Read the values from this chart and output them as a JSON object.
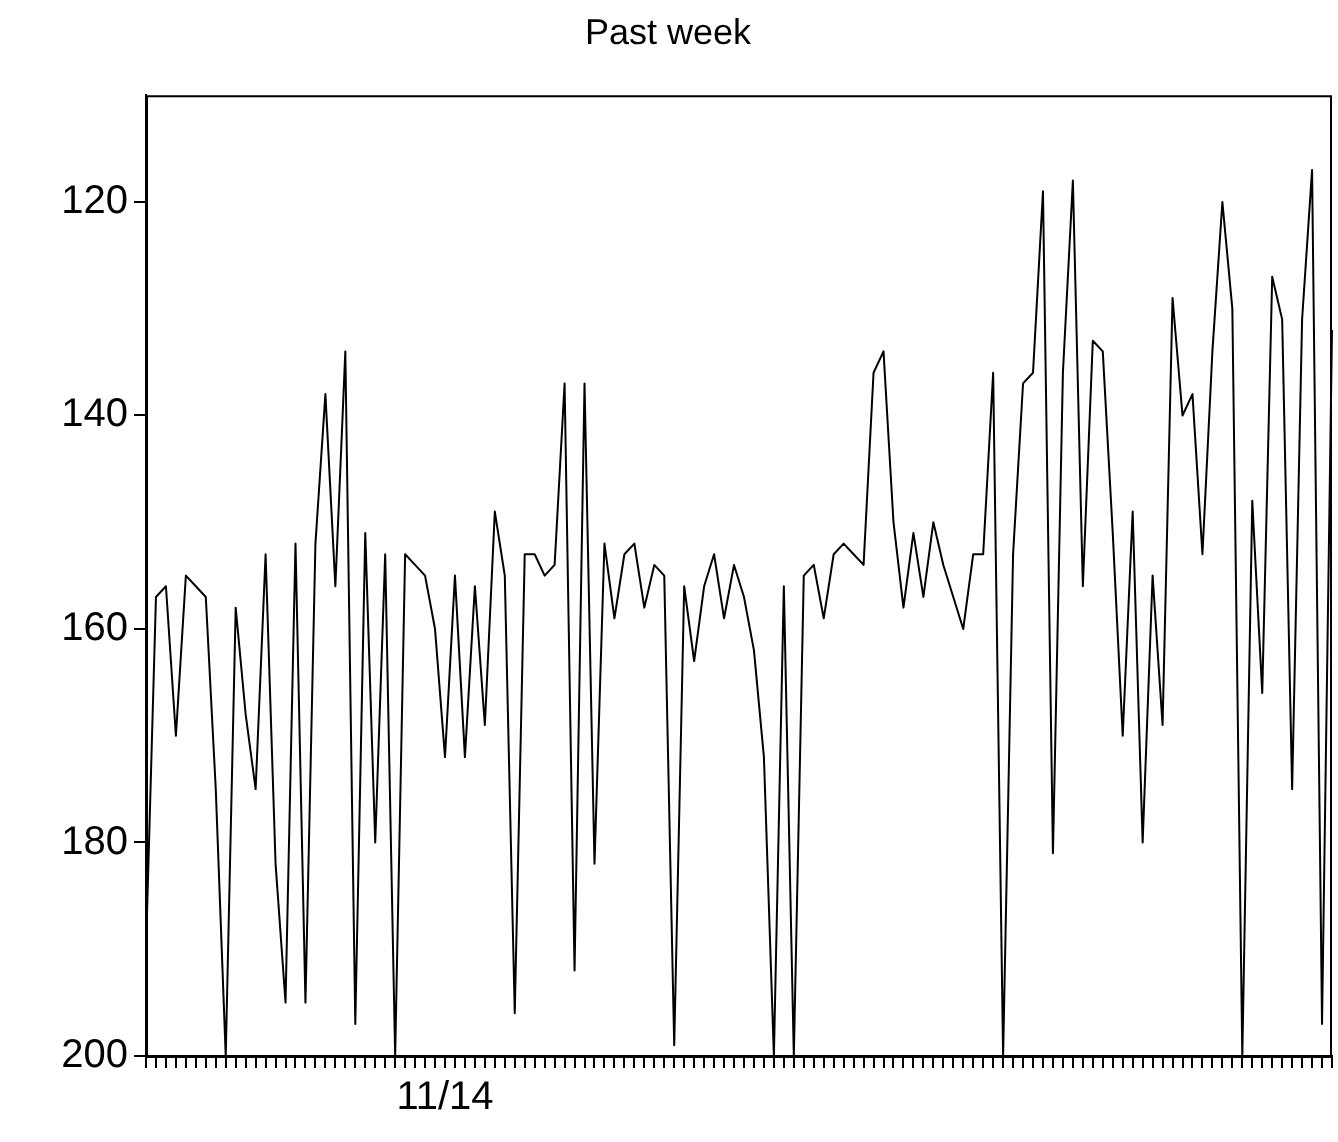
{
  "chart_data": {
    "type": "line",
    "title": "Past week",
    "categories": [
      null,
      null,
      null,
      null,
      null,
      null,
      null,
      null,
      null,
      null,
      null,
      null,
      null,
      null,
      null,
      null,
      null,
      null,
      null,
      null,
      null,
      null,
      null,
      null,
      null,
      null,
      null,
      null,
      null,
      null,
      "11/14",
      null,
      null,
      null,
      null,
      null,
      null,
      null,
      null,
      null,
      null,
      null,
      null,
      null,
      null,
      null,
      null,
      null,
      null,
      null,
      null,
      null,
      null,
      null,
      null,
      null,
      null,
      null,
      null,
      null,
      null,
      null,
      null,
      null,
      null,
      null,
      null,
      null,
      null,
      null,
      null,
      null,
      null,
      null,
      null,
      null,
      null,
      null,
      null,
      null,
      null,
      null,
      null,
      null,
      null,
      null,
      null,
      null,
      null,
      null,
      null,
      null,
      null,
      null,
      null,
      null,
      null,
      null,
      null,
      null,
      null,
      null,
      null,
      null,
      null,
      null,
      null,
      null,
      null,
      null,
      null,
      null,
      null,
      null,
      null,
      null,
      null,
      null,
      null,
      null
    ],
    "values": [
      190,
      157,
      156,
      170,
      155,
      156,
      157,
      175,
      200,
      158,
      168,
      175,
      153,
      182,
      195,
      152,
      195,
      152,
      138,
      156,
      134,
      197,
      151,
      180,
      153,
      200,
      153,
      154,
      155,
      160,
      172,
      155,
      172,
      156,
      169,
      149,
      155,
      196,
      153,
      153,
      155,
      154,
      137,
      192,
      137,
      182,
      152,
      159,
      153,
      152,
      158,
      154,
      155,
      199,
      156,
      163,
      156,
      153,
      159,
      154,
      157,
      162,
      172,
      200,
      156,
      200,
      155,
      154,
      159,
      153,
      152,
      153,
      154,
      136,
      134,
      150,
      158,
      151,
      157,
      150,
      154,
      157,
      160,
      153,
      153,
      136,
      200,
      153,
      137,
      136,
      119,
      181,
      136,
      118,
      156,
      133,
      134,
      151,
      170,
      149,
      180,
      155,
      169,
      129,
      140,
      138,
      153,
      134,
      120,
      130,
      200,
      148,
      166,
      127,
      131,
      175,
      131,
      117,
      197,
      132
    ],
    "color": "#000000",
    "line_style": "solid",
    "ylim": [
      200,
      110
    ],
    "yticks": [
      120,
      140,
      160,
      180,
      200
    ],
    "grid": false,
    "legend": false
  }
}
